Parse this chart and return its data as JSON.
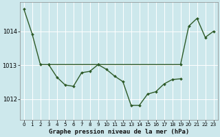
{
  "title": "Graphe pression niveau de la mer (hPa)",
  "bg_color": "#cde8ec",
  "line_color": "#2d5a27",
  "grid_color": "#ffffff",
  "xlim": [
    -0.5,
    23.5
  ],
  "ylim": [
    1011.4,
    1014.85
  ],
  "yticks": [
    1012,
    1013,
    1014
  ],
  "xticks": [
    0,
    1,
    2,
    3,
    4,
    5,
    6,
    7,
    8,
    9,
    10,
    11,
    12,
    13,
    14,
    15,
    16,
    17,
    18,
    19,
    20,
    21,
    22,
    23
  ],
  "series1_x": [
    0,
    1,
    2,
    3,
    9,
    19,
    20,
    21,
    22,
    23
  ],
  "series1_y": [
    1014.65,
    1013.92,
    1013.02,
    1013.02,
    1013.02,
    1013.02,
    1014.15,
    1014.38,
    1013.82,
    1014.0
  ],
  "series2_x": [
    3,
    4,
    5,
    6,
    7,
    8,
    9,
    10,
    11,
    12,
    13,
    14,
    15,
    16,
    17,
    18,
    19
  ],
  "series2_y": [
    1013.02,
    1012.65,
    1012.42,
    1012.38,
    1012.78,
    1012.82,
    1013.02,
    1012.88,
    1012.68,
    1012.52,
    1011.82,
    1011.82,
    1012.15,
    1012.22,
    1012.45,
    1012.58,
    1012.6
  ]
}
